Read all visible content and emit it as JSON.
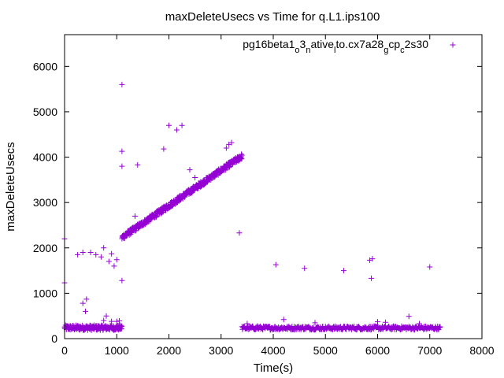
{
  "chart_data": {
    "type": "scatter",
    "title": "maxDeleteUsecs vs Time for q.L1.ips100",
    "xlabel": "Time(s)",
    "ylabel": "maxDeleteUsecs",
    "xlim": [
      0,
      8000
    ],
    "ylim": [
      0,
      6700
    ],
    "x_ticks": [
      0,
      1000,
      2000,
      3000,
      4000,
      5000,
      6000,
      7000,
      8000
    ],
    "y_ticks": [
      0,
      1000,
      2000,
      3000,
      4000,
      5000,
      6000
    ],
    "x_tick_labels": [
      "0",
      "1000",
      "2000",
      "3000",
      "4000",
      "5000",
      "6000",
      "7000",
      "8000"
    ],
    "y_tick_labels": [
      "0",
      "1000",
      "2000",
      "3000",
      "4000",
      "5000",
      "6000"
    ],
    "legend_position": "top-right",
    "marker": "+",
    "series": [
      {
        "name": "pg16beta1_o3_native_lto.cx7a28_gcp_c2s30",
        "legend_parts": [
          {
            "text": "pg16beta1",
            "shift": "none"
          },
          {
            "text": "o",
            "shift": "sub"
          },
          {
            "text": "3",
            "shift": "none"
          },
          {
            "text": "n",
            "shift": "sub"
          },
          {
            "text": "ative",
            "shift": "none"
          },
          {
            "text": "l",
            "shift": "sub"
          },
          {
            "text": "to.cx7a28",
            "shift": "none"
          },
          {
            "text": "g",
            "shift": "sub"
          },
          {
            "text": "cp",
            "shift": "none"
          },
          {
            "text": "c",
            "shift": "sub"
          },
          {
            "text": "2s30",
            "shift": "none"
          }
        ],
        "color": "#9400d3",
        "segments": [
          {
            "x_start": 0,
            "x_end": 1100,
            "y_start": 240,
            "y_end": 240,
            "spread": 55,
            "step": 6
          },
          {
            "x_start": 1100,
            "x_end": 3400,
            "y_start": 2230,
            "y_end": 4020,
            "spread": 60,
            "step": 5
          },
          {
            "x_start": 3400,
            "x_end": 7200,
            "y_start": 235,
            "y_end": 235,
            "spread": 40,
            "step": 10
          }
        ],
        "outliers": [
          [
            0,
            2200
          ],
          [
            0,
            1230
          ],
          [
            250,
            1850
          ],
          [
            350,
            1900
          ],
          [
            500,
            1900
          ],
          [
            600,
            1850
          ],
          [
            700,
            1800
          ],
          [
            750,
            2000
          ],
          [
            850,
            1700
          ],
          [
            900,
            1870
          ],
          [
            950,
            1600
          ],
          [
            1000,
            1740
          ],
          [
            350,
            780
          ],
          [
            420,
            870
          ],
          [
            400,
            600
          ],
          [
            800,
            500
          ],
          [
            750,
            400
          ],
          [
            900,
            380
          ],
          [
            1000,
            380
          ],
          [
            1050,
            390
          ],
          [
            1100,
            5600
          ],
          [
            1100,
            4130
          ],
          [
            1100,
            3800
          ],
          [
            1100,
            1280
          ],
          [
            1350,
            2700
          ],
          [
            1400,
            3830
          ],
          [
            1900,
            4180
          ],
          [
            2000,
            4700
          ],
          [
            2150,
            4600
          ],
          [
            2250,
            4700
          ],
          [
            2400,
            3720
          ],
          [
            2500,
            3550
          ],
          [
            3100,
            4200
          ],
          [
            3150,
            4280
          ],
          [
            3200,
            4320
          ],
          [
            3350,
            2330
          ],
          [
            4050,
            1630
          ],
          [
            4600,
            1550
          ],
          [
            5350,
            1500
          ],
          [
            5850,
            1730
          ],
          [
            5900,
            1760
          ],
          [
            5880,
            1330
          ],
          [
            7000,
            1580
          ],
          [
            4200,
            420
          ],
          [
            4800,
            350
          ],
          [
            6000,
            370
          ],
          [
            6150,
            360
          ],
          [
            6600,
            490
          ],
          [
            6800,
            330
          ],
          [
            3500,
            330
          ],
          [
            3700,
            280
          ]
        ]
      }
    ]
  }
}
